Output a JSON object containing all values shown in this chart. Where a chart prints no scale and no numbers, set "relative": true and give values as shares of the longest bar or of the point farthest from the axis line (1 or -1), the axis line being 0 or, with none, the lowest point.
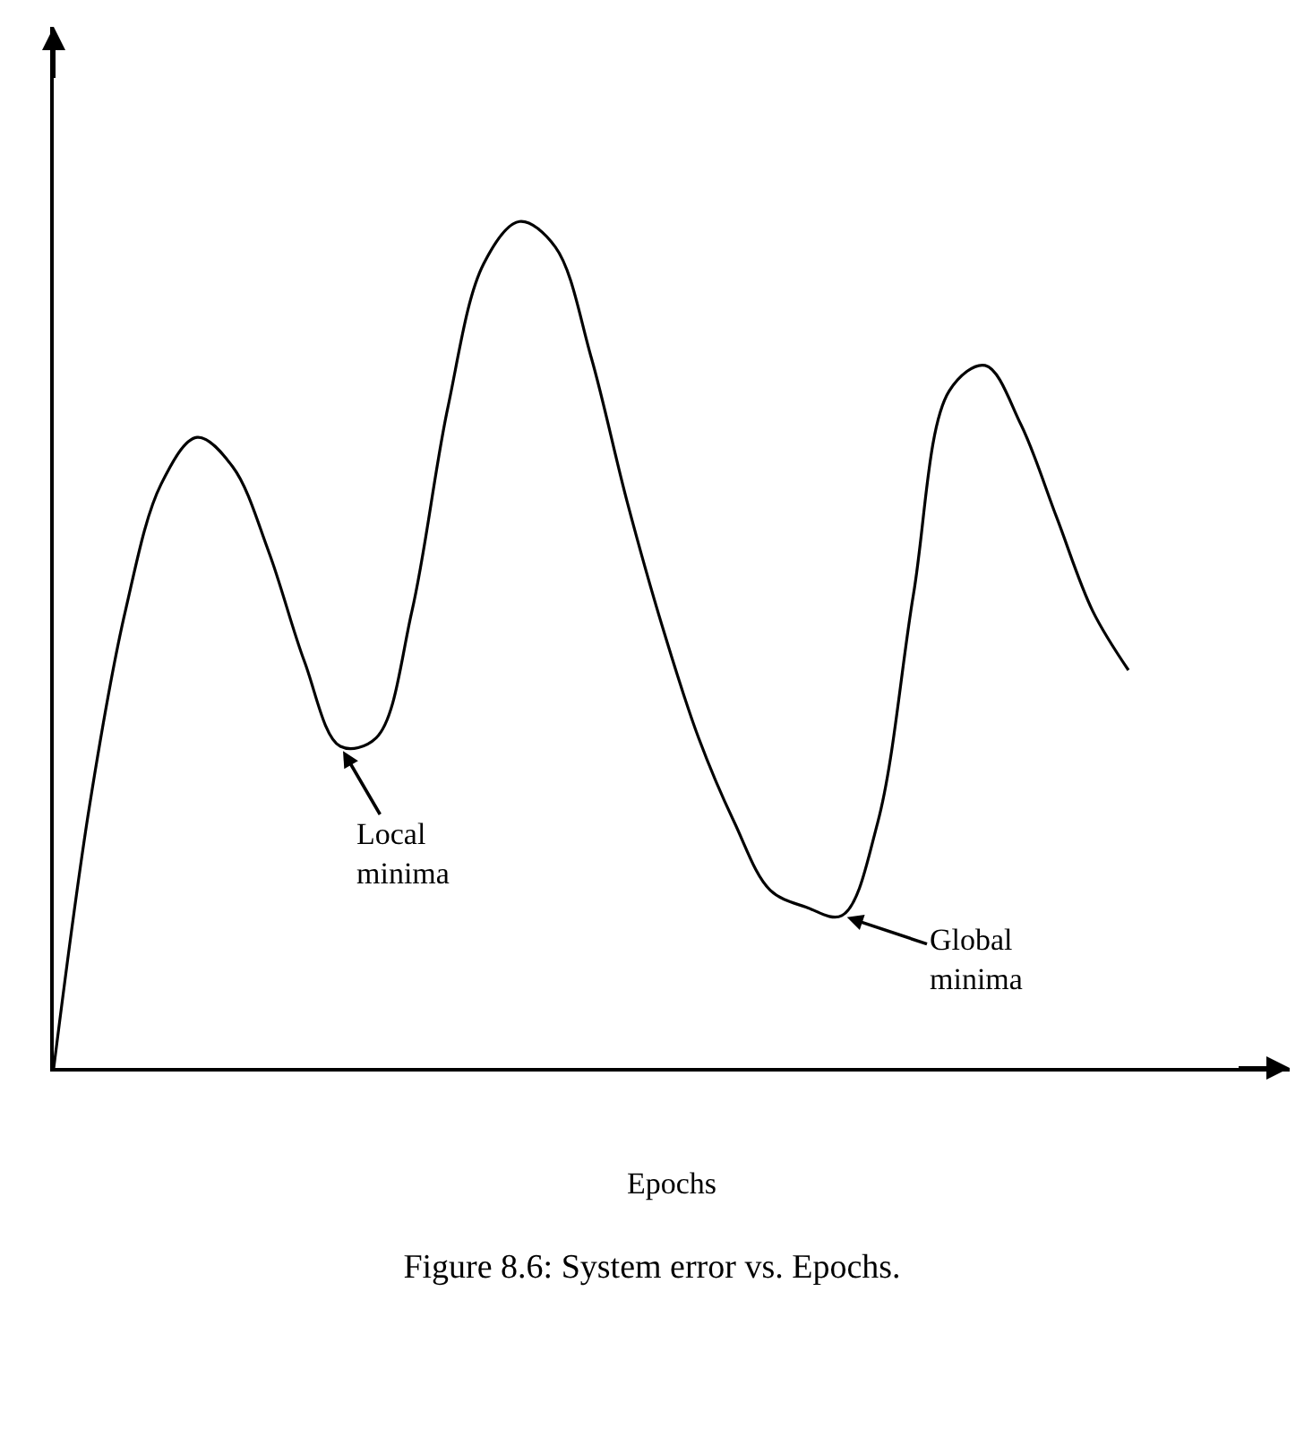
{
  "chart_data": {
    "type": "line",
    "title": "Figure 8.6: System error vs. Epochs.",
    "xlabel": "Epochs",
    "relative": true,
    "marker": "none",
    "line_style": "solid",
    "categories": [
      null,
      null,
      null,
      null,
      null,
      null,
      null,
      null,
      null,
      null,
      null,
      null,
      null,
      null,
      null,
      null,
      null,
      null,
      null,
      null,
      null,
      null,
      null,
      null,
      null,
      null,
      null,
      null,
      null,
      null,
      null
    ],
    "series": [
      {
        "color": "#000000",
        "values": [
          0,
          0.31,
          0.54,
          0.69,
          0.745,
          0.71,
          0.61,
          0.48,
          0.38,
          0.39,
          0.54,
          0.78,
          0.95,
          1,
          0.97,
          0.84,
          0.67,
          0.52,
          0.39,
          0.29,
          0.21,
          0.19,
          0.18,
          0.29,
          0.56,
          0.8,
          0.83,
          0.76,
          0.65,
          0.54,
          0.47
        ]
      }
    ],
    "annotations": [
      "Local\nminima",
      "Global\nminima"
    ]
  }
}
